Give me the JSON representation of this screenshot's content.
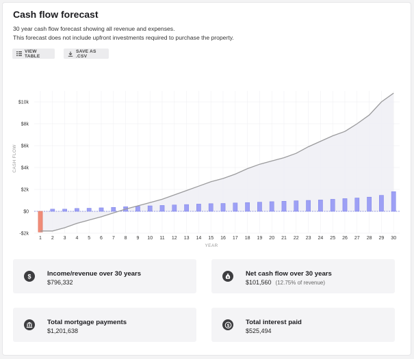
{
  "header": {
    "title": "Cash flow forecast",
    "description_line1": "30 year cash flow forecast showing all revenue and expenses.",
    "description_line2": "This forecast does not include upfront investments required to purchase the property."
  },
  "toolbar": {
    "view_table_label": "VIEW TABLE",
    "save_csv_label": "SAVE AS .CSV",
    "view_table_icon": "table-icon",
    "save_csv_icon": "download-icon"
  },
  "colors": {
    "bar_positive": "#9da0f5",
    "bar_negative": "#f08c78",
    "line": "#9a9a9c",
    "area_fill": "#eeeef4",
    "zero_line": "#6d74d8"
  },
  "chart_data": {
    "type": "bar",
    "ylabel": "CASH FLOW",
    "xlabel": "YEAR",
    "ylim": [
      -2000,
      11000
    ],
    "y_ticks": [
      -2000,
      0,
      2000,
      4000,
      6000,
      8000,
      10000
    ],
    "y_tick_labels": [
      "-$2k",
      "$0",
      "$2k",
      "$4k",
      "$6k",
      "$8k",
      "$10k"
    ],
    "categories": [
      "1",
      "2",
      "3",
      "4",
      "5",
      "6",
      "7",
      "8",
      "9",
      "10",
      "11",
      "12",
      "13",
      "14",
      "15",
      "16",
      "17",
      "18",
      "19",
      "20",
      "21",
      "22",
      "23",
      "24",
      "25",
      "26",
      "27",
      "28",
      "29",
      "30"
    ],
    "series": [
      {
        "kind": "bar",
        "values": [
          -1900,
          200,
          200,
          260,
          280,
          320,
          360,
          420,
          460,
          500,
          540,
          580,
          620,
          660,
          700,
          720,
          760,
          800,
          840,
          880,
          920,
          960,
          1000,
          1040,
          1100,
          1160,
          1220,
          1300,
          1460,
          1800
        ]
      },
      {
        "kind": "line",
        "values": [
          -1800,
          -1800,
          -1500,
          -1100,
          -800,
          -500,
          -150,
          200,
          500,
          800,
          1100,
          1500,
          1900,
          2300,
          2700,
          3000,
          3400,
          3900,
          4300,
          4600,
          4900,
          5300,
          5900,
          6400,
          6900,
          7300,
          8000,
          8800,
          10000,
          10800
        ]
      }
    ]
  },
  "stats": [
    {
      "icon": "dollar-icon",
      "label": "Income/revenue over 30 years",
      "value": "$796,332",
      "sub": ""
    },
    {
      "icon": "money-bag-icon",
      "label": "Net cash flow over 30 years",
      "value": "$101,560",
      "sub": "(12.75% of revenue)"
    },
    {
      "icon": "bank-icon",
      "label": "Total mortgage payments",
      "value": "$1,201,638",
      "sub": ""
    },
    {
      "icon": "coin-icon",
      "label": "Total interest paid",
      "value": "$525,494",
      "sub": ""
    }
  ]
}
